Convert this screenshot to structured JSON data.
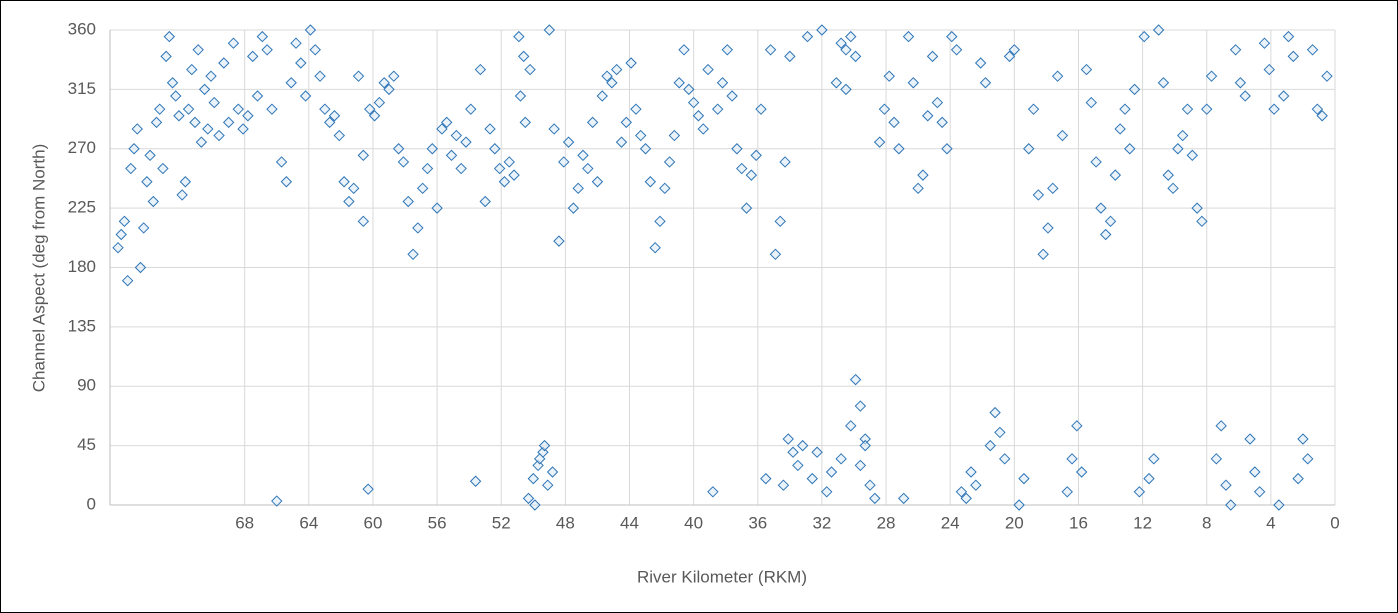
{
  "chart_data": {
    "type": "scatter",
    "x_label": "River Kilometer (RKM)",
    "y_label": "Channel Aspect (deg from North)",
    "color": "#2e75b6",
    "xlim": [
      76.4,
      0
    ],
    "ylim": [
      0,
      360
    ],
    "xticks": [
      68,
      64,
      60,
      56,
      52,
      48,
      44,
      40,
      36,
      32,
      28,
      24,
      20,
      16,
      12,
      8,
      4,
      0
    ],
    "yticks": [
      0,
      45,
      90,
      135,
      180,
      225,
      270,
      315,
      360
    ],
    "grid": true,
    "x": [
      75.9,
      75.7,
      75.5,
      75.3,
      75.1,
      74.9,
      74.7,
      74.5,
      74.3,
      74.1,
      73.9,
      73.7,
      73.5,
      73.3,
      73.1,
      72.9,
      72.7,
      72.5,
      72.3,
      72.1,
      71.9,
      71.7,
      71.5,
      71.3,
      71.1,
      70.9,
      70.7,
      70.5,
      70.3,
      70.1,
      69.9,
      69.6,
      69.3,
      69,
      68.7,
      68.4,
      68.1,
      67.8,
      67.5,
      67.2,
      66.9,
      66.6,
      66.3,
      66,
      65.7,
      65.4,
      65.1,
      64.8,
      64.5,
      64.2,
      63.9,
      63.6,
      63.3,
      63,
      62.7,
      62.4,
      62.1,
      61.8,
      61.5,
      61.2,
      60.9,
      60.6,
      60.3,
      60.6,
      60.2,
      59.9,
      59.6,
      59.3,
      59,
      58.7,
      58.4,
      58.1,
      57.8,
      57.5,
      57.2,
      56.9,
      56.6,
      56.3,
      56,
      55.7,
      55.4,
      55.1,
      54.8,
      54.5,
      54.2,
      53.9,
      53.6,
      53.3,
      53,
      52.7,
      52.4,
      52.1,
      51.8,
      51.5,
      51.2,
      50.9,
      50.6,
      50.3,
      50,
      49.7,
      49.4,
      49.1,
      48.8,
      50.8,
      50.5,
      50.2,
      49.9,
      49.6,
      49.3,
      49,
      48.7,
      48.4,
      48.1,
      47.8,
      47.5,
      47.2,
      46.9,
      46.6,
      46.3,
      46,
      45.7,
      45.4,
      45.1,
      44.8,
      44.5,
      44.2,
      43.9,
      43.6,
      43.3,
      43,
      42.7,
      42.4,
      42.1,
      41.8,
      41.5,
      41.2,
      40.9,
      40.6,
      40.3,
      40,
      39.7,
      39.4,
      39.1,
      38.8,
      38.5,
      38.2,
      37.9,
      37.6,
      37.3,
      37,
      36.7,
      36.4,
      36.1,
      35.8,
      35.5,
      35.2,
      34.9,
      34.6,
      34.3,
      34,
      34.4,
      34.1,
      33.8,
      33.5,
      33.2,
      32.9,
      32.6,
      32.3,
      32,
      31.7,
      31.4,
      31.1,
      30.8,
      30.5,
      30.2,
      29.9,
      29.6,
      29.3,
      29,
      28.7,
      30.8,
      30.5,
      30.2,
      29.9,
      29.6,
      29.3,
      28.4,
      28.1,
      27.8,
      27.5,
      27.2,
      26.9,
      26.6,
      26.3,
      26,
      25.7,
      25.4,
      25.1,
      24.8,
      24.5,
      24.2,
      23.9,
      23.6,
      23.3,
      23,
      22.7,
      22.4,
      22.1,
      21.8,
      21.5,
      21.2,
      20.9,
      20.6,
      20.3,
      20,
      19.7,
      19.4,
      19.1,
      18.8,
      18.5,
      18.2,
      17.9,
      17.6,
      17.3,
      17,
      16.7,
      16.4,
      16.1,
      15.8,
      15.5,
      15.2,
      14.9,
      14.6,
      14.3,
      14,
      13.7,
      13.4,
      13.1,
      12.8,
      12.5,
      12.2,
      11.9,
      11.6,
      11.3,
      11,
      10.7,
      10.4,
      10.1,
      9.8,
      9.5,
      9.2,
      8.9,
      8.6,
      8.3,
      8,
      7.7,
      7.4,
      7.1,
      6.8,
      6.5,
      6.2,
      5.9,
      5.6,
      5.3,
      5,
      4.7,
      4.4,
      4.1,
      3.8,
      3.5,
      3.2,
      2.9,
      2.6,
      2.3,
      2,
      1.7,
      1.4,
      1.1,
      0.8,
      0.5
    ],
    "values": [
      195,
      205,
      215,
      170,
      255,
      270,
      285,
      180,
      210,
      245,
      265,
      230,
      290,
      300,
      255,
      340,
      355,
      320,
      310,
      295,
      235,
      245,
      300,
      330,
      290,
      345,
      275,
      315,
      285,
      325,
      305,
      280,
      335,
      290,
      350,
      300,
      285,
      295,
      340,
      310,
      355,
      345,
      300,
      3,
      260,
      245,
      320,
      350,
      335,
      310,
      360,
      345,
      325,
      300,
      290,
      295,
      280,
      245,
      230,
      240,
      325,
      265,
      12,
      215,
      300,
      295,
      305,
      320,
      315,
      325,
      270,
      260,
      230,
      190,
      210,
      240,
      255,
      270,
      225,
      285,
      290,
      265,
      280,
      255,
      275,
      300,
      18,
      330,
      230,
      285,
      270,
      255,
      245,
      260,
      250,
      355,
      340,
      5,
      20,
      30,
      40,
      15,
      25,
      310,
      290,
      330,
      0,
      35,
      45,
      360,
      285,
      200,
      260,
      275,
      225,
      240,
      265,
      255,
      290,
      245,
      310,
      325,
      320,
      330,
      275,
      290,
      335,
      300,
      280,
      270,
      245,
      195,
      215,
      240,
      260,
      280,
      320,
      345,
      315,
      305,
      295,
      285,
      330,
      10,
      300,
      320,
      345,
      310,
      270,
      255,
      225,
      250,
      265,
      300,
      20,
      345,
      190,
      215,
      260,
      340,
      15,
      50,
      40,
      30,
      45,
      355,
      20,
      40,
      360,
      10,
      25,
      320,
      35,
      345,
      60,
      95,
      75,
      50,
      15,
      5,
      350,
      315,
      355,
      340,
      30,
      45,
      275,
      300,
      325,
      290,
      270,
      5,
      355,
      320,
      240,
      250,
      295,
      340,
      305,
      290,
      270,
      355,
      345,
      10,
      5,
      25,
      15,
      335,
      320,
      45,
      70,
      55,
      35,
      340,
      345,
      0,
      20,
      270,
      300,
      235,
      190,
      210,
      240,
      325,
      280,
      10,
      35,
      60,
      25,
      330,
      305,
      260,
      225,
      205,
      215,
      250,
      285,
      300,
      270,
      315,
      10,
      355,
      20,
      35,
      360,
      320,
      250,
      240,
      270,
      280,
      300,
      265,
      225,
      215,
      300,
      325,
      35,
      60,
      15,
      0,
      345,
      320,
      310,
      50,
      25,
      10,
      350,
      330,
      300,
      0,
      310,
      355,
      340,
      20,
      50,
      35,
      345,
      300,
      295,
      325
    ]
  }
}
